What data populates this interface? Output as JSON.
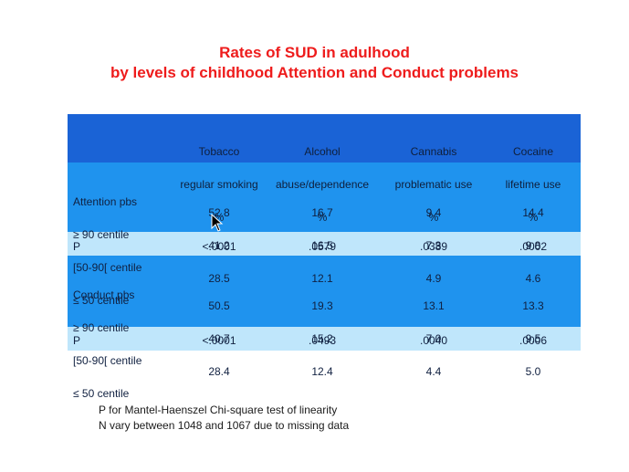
{
  "title": {
    "line1": "Rates of SUD in adulhood",
    "line2": "by levels of childhood Attention and Conduct problems"
  },
  "table": {
    "columns": [
      {
        "name": "Tobacco",
        "sub": "regular smoking",
        "unit": "%"
      },
      {
        "name": "Alcohol",
        "sub": "abuse/dependence",
        "unit": "%"
      },
      {
        "name": "Cannabis",
        "sub": "problematic use",
        "unit": "%"
      },
      {
        "name": "Cocaine",
        "sub": "lifetime use",
        "unit": "%"
      }
    ],
    "attention": {
      "labels": [
        "Attention pbs",
        "≥ 90 centile",
        "[50-90[ centile",
        "≤ 50 centile"
      ],
      "values": [
        [
          "52.8",
          "41.2",
          "28.5"
        ],
        [
          "16.7",
          "16.5",
          "12.1"
        ],
        [
          "9.4",
          "7.3",
          "4.9"
        ],
        [
          "14.4",
          "9.8",
          "4.6"
        ]
      ],
      "p_label": "P",
      "p_values": [
        "<.0001",
        ".0579",
        ".0389",
        ".0002"
      ]
    },
    "conduct": {
      "labels": [
        "Conduct pbs",
        "≥ 90 centile",
        "[50-90[ centile",
        "≤ 50 centile"
      ],
      "values": [
        [
          "50.5",
          "40.7",
          "28.4"
        ],
        [
          "19.3",
          "15.2",
          "12.4"
        ],
        [
          "13.1",
          "7.0",
          "4.4"
        ],
        [
          "13.3",
          "9.5",
          "5.0"
        ]
      ],
      "p_label": "P",
      "p_values": [
        "<.0001",
        ".0493",
        ".0040",
        ".0006"
      ]
    }
  },
  "footer": {
    "line1": "P for Mantel-Haenszel Chi-square test of linearity",
    "line2": "N vary between 1048 and 1067 due to missing data"
  },
  "colors": {
    "title": "#ee1c1c",
    "header_band": "#1a63d6",
    "data_band": "#1f93ee",
    "p_band": "#bfe6fb"
  }
}
